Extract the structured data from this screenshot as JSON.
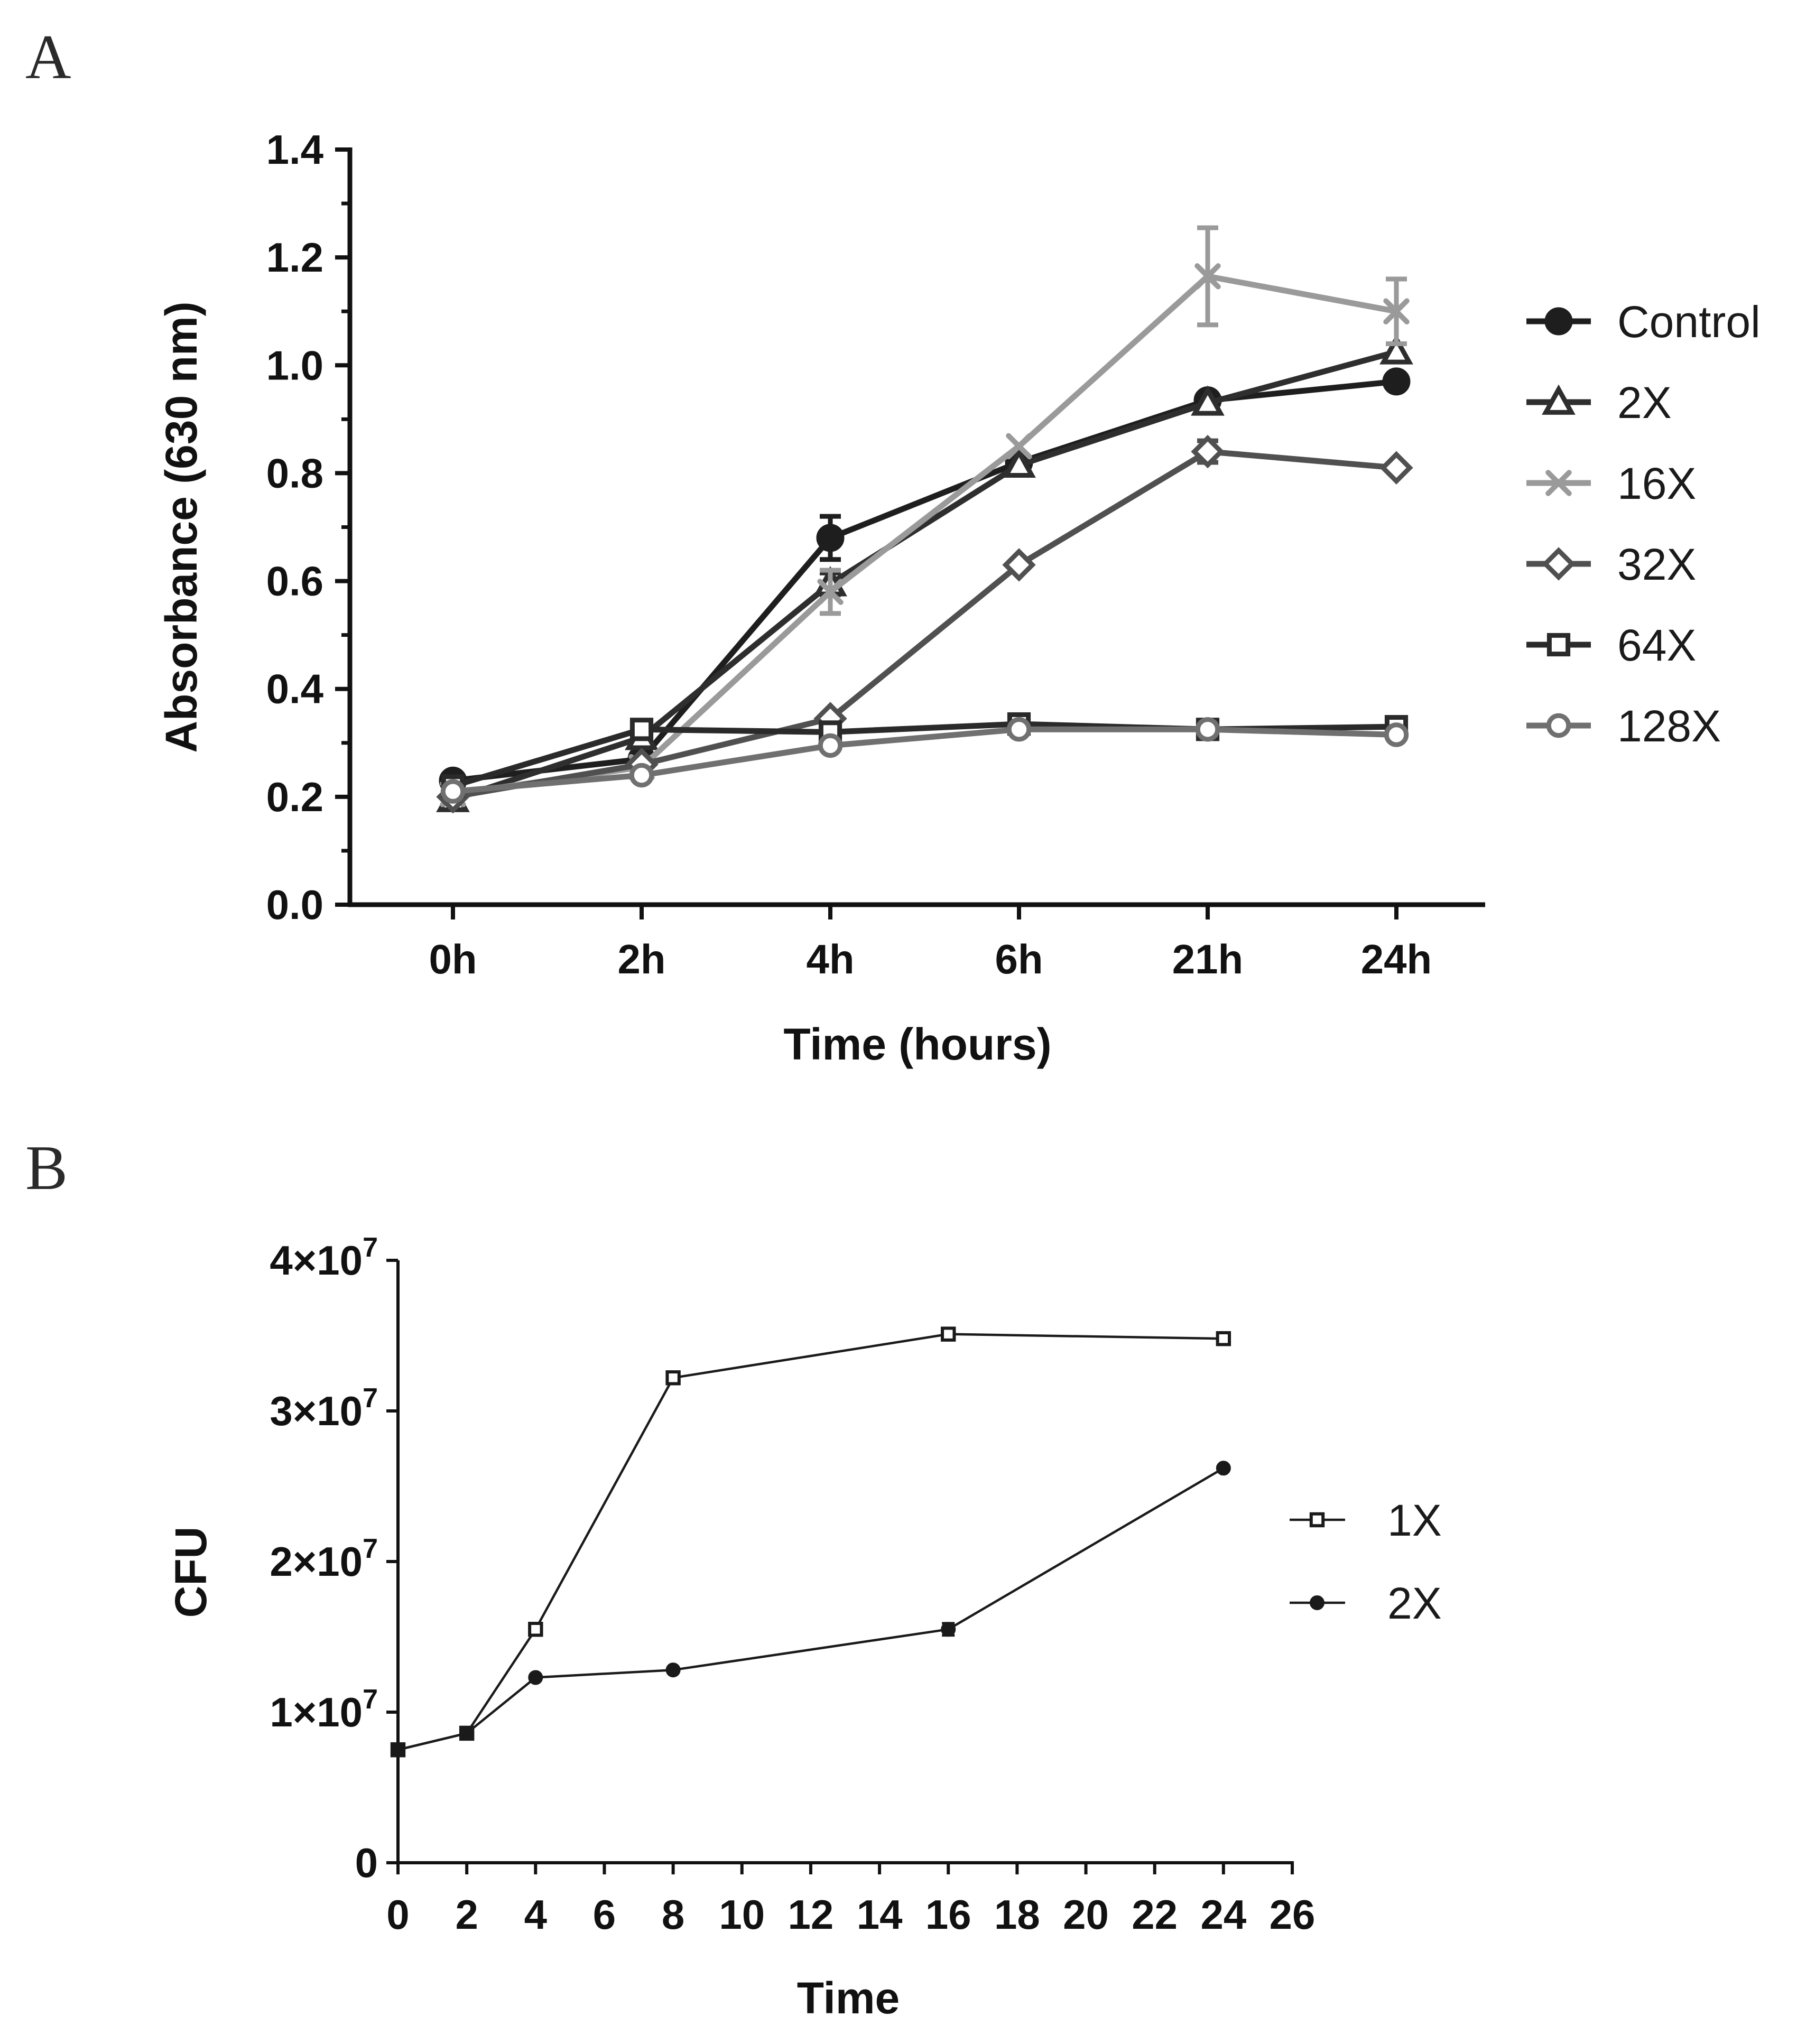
{
  "chart_data": [
    {
      "panel_label": "A",
      "type": "line",
      "xlabel": "Time (hours)",
      "ylabel": "Absorbance (630 nm)",
      "categories": [
        "0h",
        "2h",
        "4h",
        "6h",
        "21h",
        "24h"
      ],
      "ylim": [
        0.0,
        1.4
      ],
      "yticks": [
        "0.0",
        "0.2",
        "0.4",
        "0.6",
        "0.8",
        "1.0",
        "1.2",
        "1.4"
      ],
      "legend_position": "right",
      "series": [
        {
          "name": "Control",
          "marker": "filled-circle",
          "color": "#1e1e1e",
          "values": [
            0.23,
            0.27,
            0.68,
            0.82,
            0.935,
            0.97
          ],
          "errors": [
            0.01,
            0.01,
            0.04,
            0.01,
            0.01,
            0.01
          ]
        },
        {
          "name": "2X",
          "marker": "open-triangle",
          "color": "#2e2e2e",
          "values": [
            0.195,
            0.31,
            0.595,
            0.815,
            0.93,
            1.025
          ],
          "errors": [
            0.005,
            0.01,
            0.02,
            0.01,
            0.01,
            0.01
          ]
        },
        {
          "name": "16X",
          "marker": "cross",
          "color": "#9a9a9a",
          "values": [
            0.205,
            0.255,
            0.58,
            0.85,
            1.165,
            1.1
          ],
          "errors": [
            0.005,
            0.01,
            0.04,
            0.01,
            0.09,
            0.06
          ]
        },
        {
          "name": "32X",
          "marker": "open-diamond",
          "color": "#505050",
          "values": [
            0.2,
            0.26,
            0.345,
            0.63,
            0.84,
            0.81
          ],
          "errors": [
            0.005,
            0.005,
            0.01,
            0.01,
            0.02,
            0.01
          ]
        },
        {
          "name": "64X",
          "marker": "open-square",
          "color": "#2a2a2a",
          "values": [
            0.22,
            0.325,
            0.32,
            0.335,
            0.325,
            0.33
          ],
          "errors": [
            0.005,
            0.005,
            0.005,
            0.005,
            0.01,
            0.005
          ]
        },
        {
          "name": "128X",
          "marker": "open-circle",
          "color": "#707070",
          "values": [
            0.21,
            0.24,
            0.295,
            0.325,
            0.325,
            0.315
          ],
          "errors": [
            0.005,
            0.005,
            0.005,
            0.005,
            0.005,
            0.005
          ]
        }
      ]
    },
    {
      "panel_label": "B",
      "type": "line",
      "xlabel": "Time",
      "ylabel": "CFU",
      "xlim": [
        0,
        26
      ],
      "xticks": [
        "0",
        "2",
        "4",
        "6",
        "8",
        "10",
        "12",
        "14",
        "16",
        "18",
        "20",
        "22",
        "24",
        "26"
      ],
      "ylim": [
        0,
        40000000
      ],
      "yticks": [
        {
          "value": 0,
          "mantissa": "0",
          "exponent": ""
        },
        {
          "value": 10000000,
          "mantissa": "1×10",
          "exponent": "7"
        },
        {
          "value": 20000000,
          "mantissa": "2×10",
          "exponent": "7"
        },
        {
          "value": 30000000,
          "mantissa": "3×10",
          "exponent": "7"
        },
        {
          "value": 40000000,
          "mantissa": "4×10",
          "exponent": "7"
        }
      ],
      "legend_position": "right",
      "series": [
        {
          "name": "1X",
          "marker": "open-square",
          "color": "#1a1a1a",
          "x": [
            0,
            2,
            4,
            8,
            16,
            24
          ],
          "values": [
            7500000,
            8600000,
            15500000,
            32200000,
            35100000,
            34800000
          ],
          "errors": [
            0,
            0,
            0,
            0,
            0,
            0
          ]
        },
        {
          "name": "2X",
          "marker": "filled-circle",
          "color": "#1a1a1a",
          "x": [
            0,
            2,
            4,
            8,
            16,
            24
          ],
          "values": [
            7500000,
            8600000,
            12300000,
            12800000,
            15500000,
            26200000
          ],
          "errors": [
            0,
            0,
            0,
            0,
            400000,
            0
          ]
        }
      ]
    }
  ]
}
